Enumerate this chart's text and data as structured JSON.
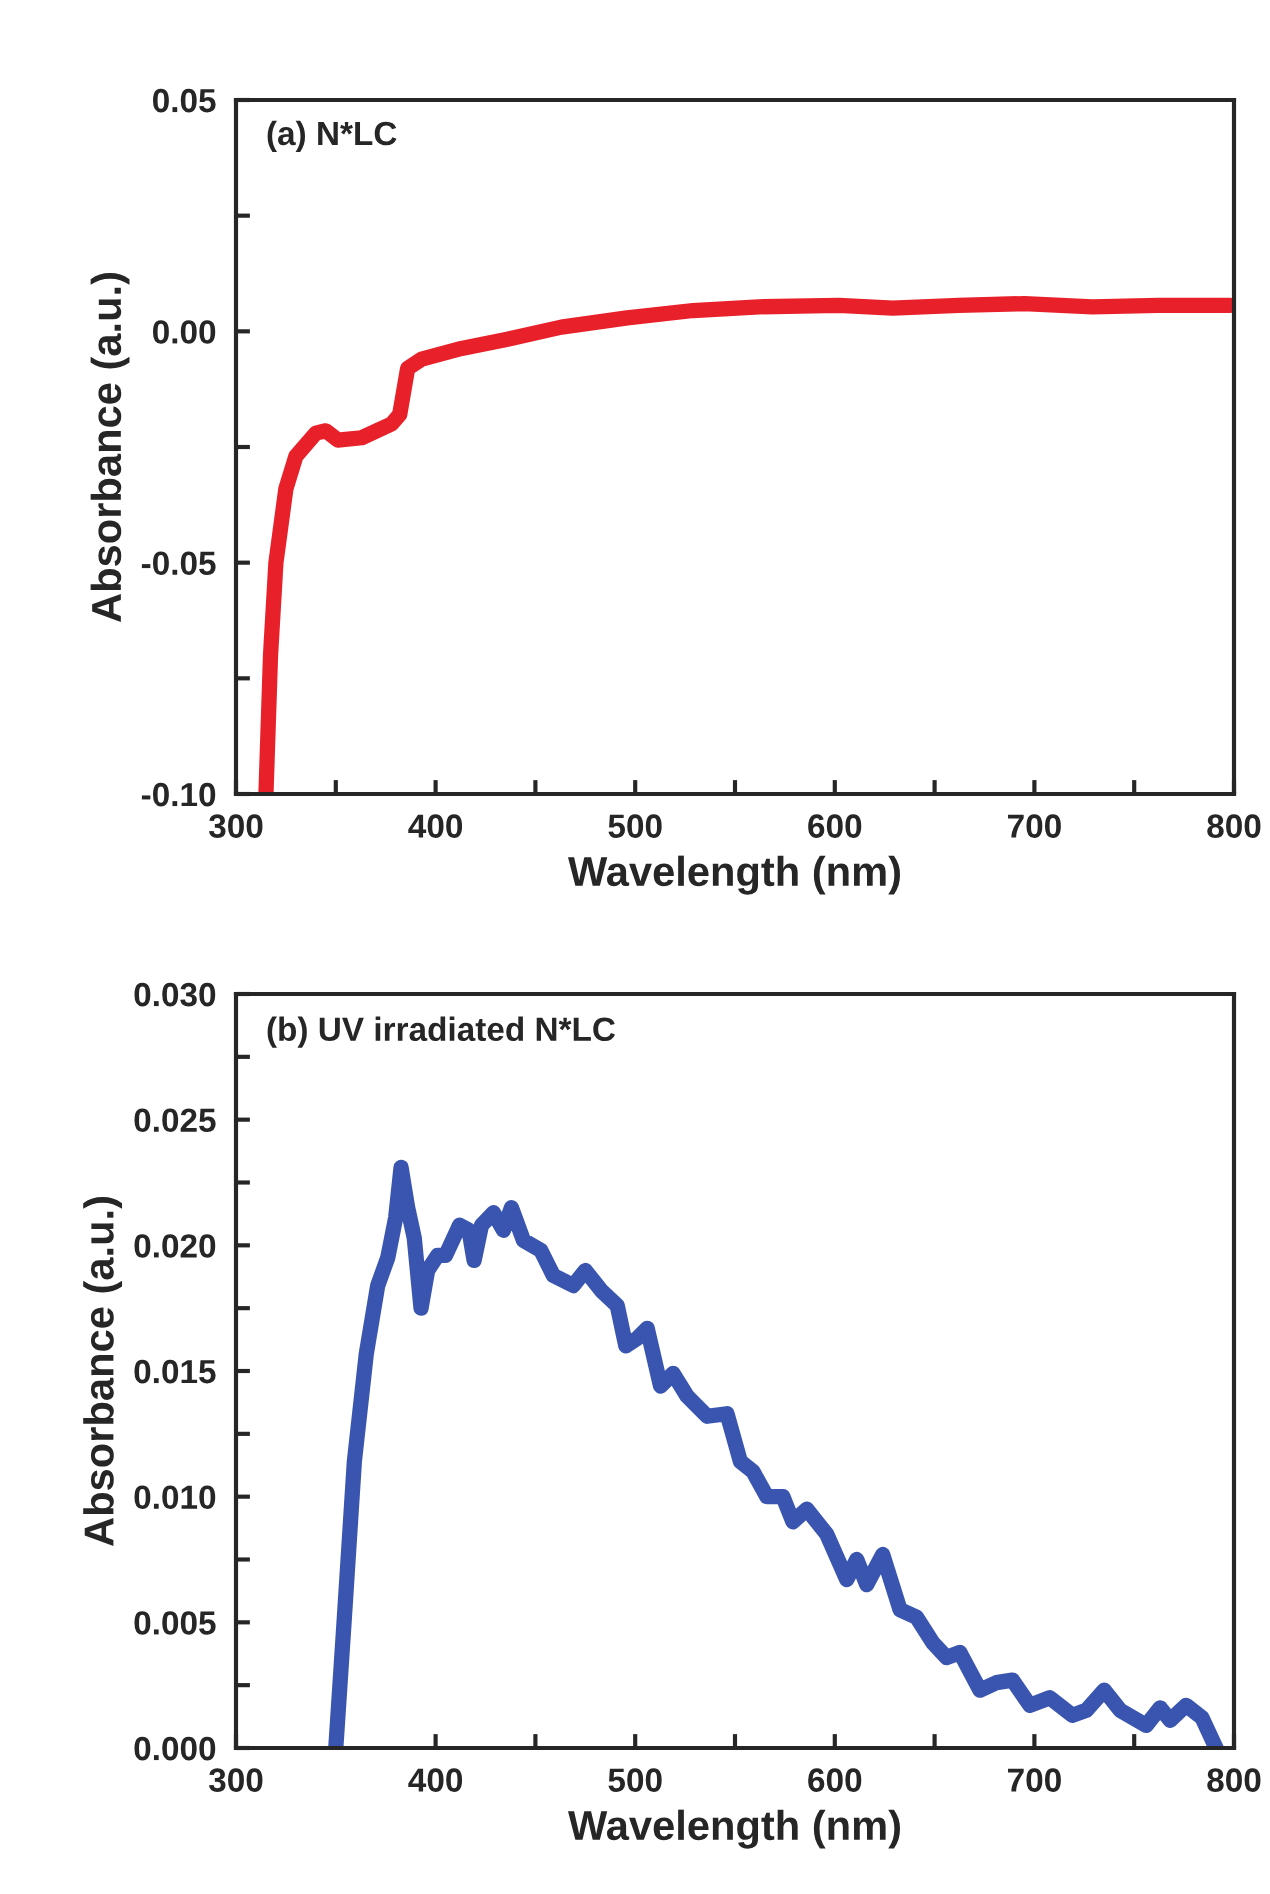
{
  "chart_data": [
    {
      "type": "line",
      "xlabel": "Wavelength (nm)",
      "ylabel": "Absorbance (a.u.)",
      "annotations": [
        "(a) N*LC"
      ],
      "xlim": [
        300,
        800
      ],
      "ylim": [
        -0.1,
        0.05
      ],
      "xticks": [
        300,
        {
          "value": 350,
          "label": null
        },
        400,
        {
          "value": 450,
          "label": null
        },
        500,
        {
          "value": 550,
          "label": null
        },
        600,
        {
          "value": 650,
          "label": null
        },
        700,
        {
          "value": 750,
          "label": null
        },
        800
      ],
      "yticks": [
        {
          "value": -0.1,
          "label": "-0.10"
        },
        {
          "value": -0.075,
          "label": null
        },
        {
          "value": -0.05,
          "label": "-0.05"
        },
        {
          "value": -0.025,
          "label": null
        },
        {
          "value": 0.0,
          "label": "0.00"
        },
        {
          "value": 0.025,
          "label": null
        },
        {
          "value": 0.05,
          "label": "0.05"
        }
      ],
      "series": [
        {
          "color": "#e8202a",
          "x": [
            315,
            317.3,
            320,
            325,
            330,
            340,
            345,
            351,
            363,
            378,
            382,
            386,
            393,
            413,
            436,
            463,
            496,
            529,
            562,
            602,
            629,
            662,
            695,
            729,
            762,
            798
          ],
          "values": [
            -0.1,
            -0.07,
            -0.05,
            -0.034,
            -0.027,
            -0.022,
            -0.0215,
            -0.0235,
            -0.023,
            -0.02,
            -0.018,
            -0.008,
            -0.006,
            -0.0037,
            -0.0017,
            0.0009,
            0.0029,
            0.0045,
            0.0053,
            0.0056,
            0.005,
            0.0056,
            0.006,
            0.0053,
            0.0056,
            0.0056
          ]
        }
      ]
    },
    {
      "type": "line",
      "xlabel": "Wavelength (nm)",
      "ylabel": "Absorbance (a.u.)",
      "annotations": [
        "(b) UV irradiated N*LC"
      ],
      "xlim": [
        300,
        800
      ],
      "ylim": [
        0,
        0.03
      ],
      "xticks": [
        300,
        {
          "value": 350,
          "label": null
        },
        400,
        {
          "value": 450,
          "label": null
        },
        500,
        {
          "value": 550,
          "label": null
        },
        600,
        {
          "value": 650,
          "label": null
        },
        700,
        {
          "value": 750,
          "label": null
        },
        800
      ],
      "yticks": [
        {
          "value": 0.0,
          "label": "0.000"
        },
        {
          "value": 0.0025,
          "label": null
        },
        {
          "value": 0.005,
          "label": "0.005"
        },
        {
          "value": 0.0075,
          "label": null
        },
        {
          "value": 0.01,
          "label": "0.010"
        },
        {
          "value": 0.0125,
          "label": null
        },
        {
          "value": 0.015,
          "label": "0.015"
        },
        {
          "value": 0.0175,
          "label": null
        },
        {
          "value": 0.02,
          "label": "0.020"
        },
        {
          "value": 0.0225,
          "label": null
        },
        {
          "value": 0.025,
          "label": "0.025"
        },
        {
          "value": 0.0275,
          "label": null
        },
        {
          "value": 0.03,
          "label": "0.030"
        }
      ],
      "series": [
        {
          "color": "#3a55b0",
          "x": [
            350,
            354.3,
            359.3,
            365.3,
            371,
            376,
            380,
            382.7,
            386,
            389.3,
            392.7,
            396,
            401,
            405,
            412,
            416.7,
            419.3,
            423,
            429,
            434,
            438,
            444,
            452.7,
            459,
            469,
            475,
            483,
            491,
            495.3,
            501,
            506,
            512.7,
            519,
            526,
            536,
            546,
            552.7,
            559,
            566,
            574,
            579,
            586,
            596,
            606,
            611,
            616,
            624,
            632.7,
            641,
            649,
            656,
            662.7,
            672.7,
            681,
            689,
            697.7,
            707.7,
            719,
            726,
            735,
            743,
            756,
            763,
            768,
            776,
            784,
            791
          ],
          "values": [
            0,
            0.0052,
            0.0114,
            0.0157,
            0.0184,
            0.0195,
            0.0211,
            0.0231,
            0.0215,
            0.0203,
            0.0175,
            0.019,
            0.0196,
            0.0196,
            0.0208,
            0.0206,
            0.0194,
            0.0208,
            0.0213,
            0.0206,
            0.0215,
            0.0202,
            0.0198,
            0.0188,
            0.0184,
            0.019,
            0.0182,
            0.0176,
            0.016,
            0.0163,
            0.0167,
            0.0144,
            0.0149,
            0.014,
            0.0132,
            0.0133,
            0.0114,
            0.011,
            0.01,
            0.01,
            0.009,
            0.0095,
            0.0085,
            0.0067,
            0.0075,
            0.0065,
            0.0077,
            0.0055,
            0.0052,
            0.0042,
            0.0036,
            0.0038,
            0.0023,
            0.0026,
            0.0027,
            0.0017,
            0.002,
            0.0013,
            0.0015,
            0.0023,
            0.0015,
            0.0009,
            0.0016,
            0.0011,
            0.0017,
            0.0012,
            0
          ]
        }
      ]
    }
  ]
}
